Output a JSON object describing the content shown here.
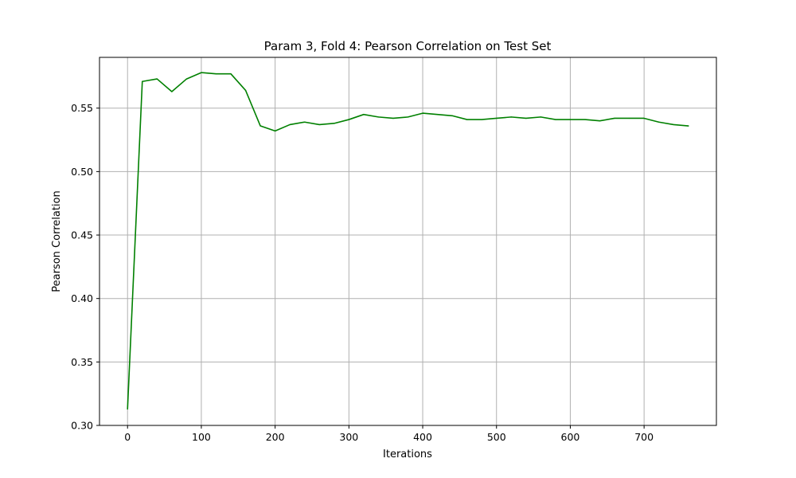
{
  "chart_data": {
    "type": "line",
    "title": "Param 3, Fold 4: Pearson Correlation on Test Set",
    "xlabel": "Iterations",
    "ylabel": "Pearson Correlation",
    "xlim": [
      -38,
      798
    ],
    "ylim": [
      0.3,
      0.59
    ],
    "xticks": [
      0,
      100,
      200,
      300,
      400,
      500,
      600,
      700
    ],
    "yticks": [
      0.3,
      0.35,
      0.4,
      0.45,
      0.5,
      0.55
    ],
    "grid": true,
    "series": [
      {
        "color": "#008000",
        "x": [
          0,
          20,
          40,
          60,
          80,
          100,
          120,
          140,
          160,
          180,
          200,
          220,
          240,
          260,
          280,
          300,
          320,
          340,
          360,
          380,
          400,
          420,
          440,
          460,
          480,
          500,
          520,
          540,
          560,
          580,
          600,
          620,
          640,
          660,
          680,
          700,
          720,
          740,
          760
        ],
        "y": [
          0.313,
          0.571,
          0.573,
          0.563,
          0.573,
          0.578,
          0.577,
          0.577,
          0.564,
          0.536,
          0.532,
          0.537,
          0.539,
          0.537,
          0.538,
          0.541,
          0.545,
          0.543,
          0.542,
          0.543,
          0.546,
          0.545,
          0.544,
          0.541,
          0.541,
          0.542,
          0.543,
          0.542,
          0.543,
          0.541,
          0.541,
          0.541,
          0.54,
          0.542,
          0.542,
          0.542,
          0.539,
          0.537,
          0.536
        ]
      }
    ]
  }
}
